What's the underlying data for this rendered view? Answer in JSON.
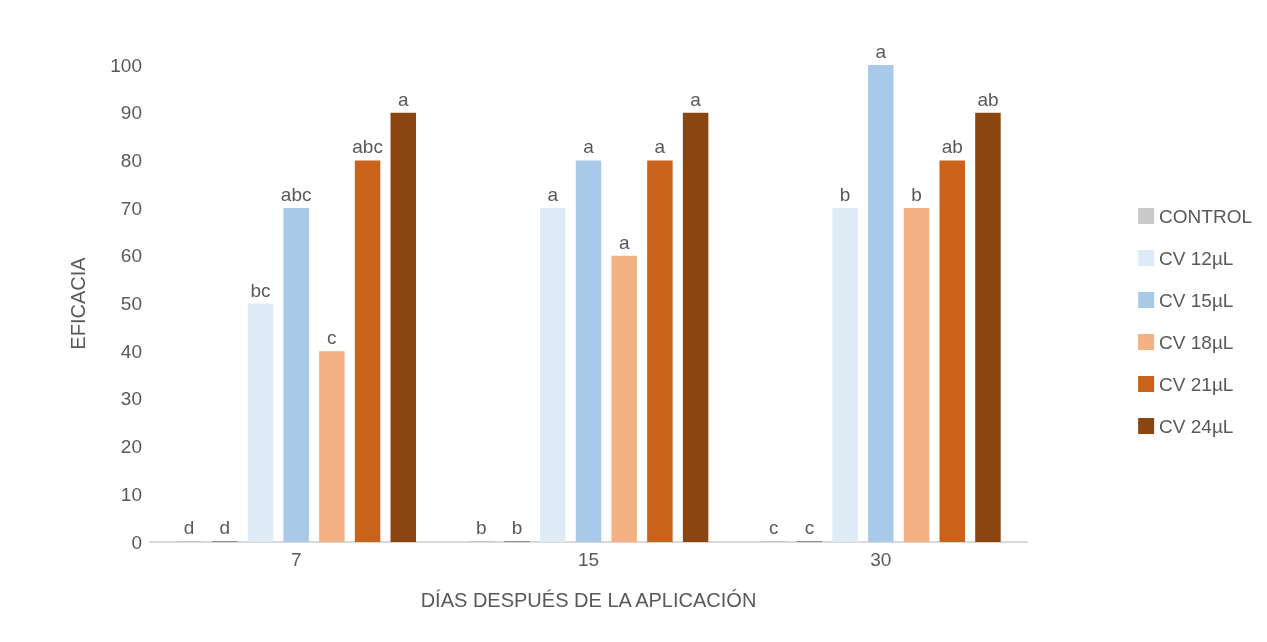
{
  "chart_data": {
    "type": "bar",
    "xlabel": "DÍAS DESPUÉS DE LA APLICACIÓN",
    "ylabel": "EFICACIA",
    "categories": [
      "7",
      "15",
      "30"
    ],
    "series": [
      {
        "name": "CONTROL",
        "color": "#c9c9c9",
        "values": [
          0,
          0,
          0
        ],
        "value_labels": [
          "d",
          "b",
          "c"
        ]
      },
      {
        "color": "#8c8c8c",
        "values": [
          0,
          0,
          0
        ],
        "value_labels": [
          "d",
          "b",
          "c"
        ]
      },
      {
        "name": "CV 12µL",
        "color": "#deebf7",
        "values": [
          50,
          70,
          70
        ],
        "value_labels": [
          "bc",
          "a",
          "b"
        ]
      },
      {
        "name": "CV 15µL",
        "color": "#a9c9e9",
        "values": [
          70,
          80,
          100
        ],
        "value_labels": [
          "abc",
          "a",
          "a"
        ]
      },
      {
        "name": "CV 18µL",
        "color": "#f4b183",
        "values": [
          40,
          60,
          70
        ],
        "value_labels": [
          "c",
          "a",
          "b"
        ]
      },
      {
        "name": "CV 21µL",
        "color": "#c9631a",
        "values": [
          80,
          80,
          80
        ],
        "value_labels": [
          "abc",
          "a",
          "ab"
        ]
      },
      {
        "name": "CV 24µL",
        "color": "#8b4511",
        "values": [
          90,
          90,
          90
        ],
        "value_labels": [
          "a",
          "a",
          "ab"
        ]
      }
    ],
    "ylim": [
      0,
      100
    ],
    "yticks": [
      0,
      10,
      20,
      30,
      40,
      50,
      60,
      70,
      80,
      90,
      100
    ],
    "grid": false,
    "legend": "right"
  }
}
